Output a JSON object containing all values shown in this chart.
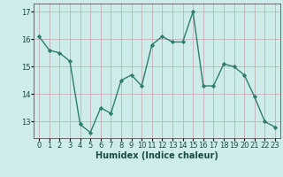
{
  "x": [
    0,
    1,
    2,
    3,
    4,
    5,
    6,
    7,
    8,
    9,
    10,
    11,
    12,
    13,
    14,
    15,
    16,
    17,
    18,
    19,
    20,
    21,
    22,
    23
  ],
  "y": [
    16.1,
    15.6,
    15.5,
    15.2,
    12.9,
    12.6,
    13.5,
    13.3,
    14.5,
    14.7,
    14.3,
    15.8,
    16.1,
    15.9,
    15.9,
    17.0,
    14.3,
    14.3,
    15.1,
    15.0,
    14.7,
    13.9,
    13.0,
    12.8
  ],
  "line_color": "#2e7d6e",
  "marker": "D",
  "markersize": 2.2,
  "linewidth": 1.0,
  "bg_color": "#cdecea",
  "grid_v_color": "#c4b0b0",
  "grid_h_color": "#c4b0b0",
  "xlabel": "Humidex (Indice chaleur)",
  "xlabel_fontsize": 7,
  "yticks": [
    13,
    14,
    15,
    16,
    17
  ],
  "xticks": [
    0,
    1,
    2,
    3,
    4,
    5,
    6,
    7,
    8,
    9,
    10,
    11,
    12,
    13,
    14,
    15,
    16,
    17,
    18,
    19,
    20,
    21,
    22,
    23
  ],
  "xlim": [
    -0.5,
    23.5
  ],
  "ylim": [
    12.4,
    17.3
  ],
  "tick_fontsize": 6
}
